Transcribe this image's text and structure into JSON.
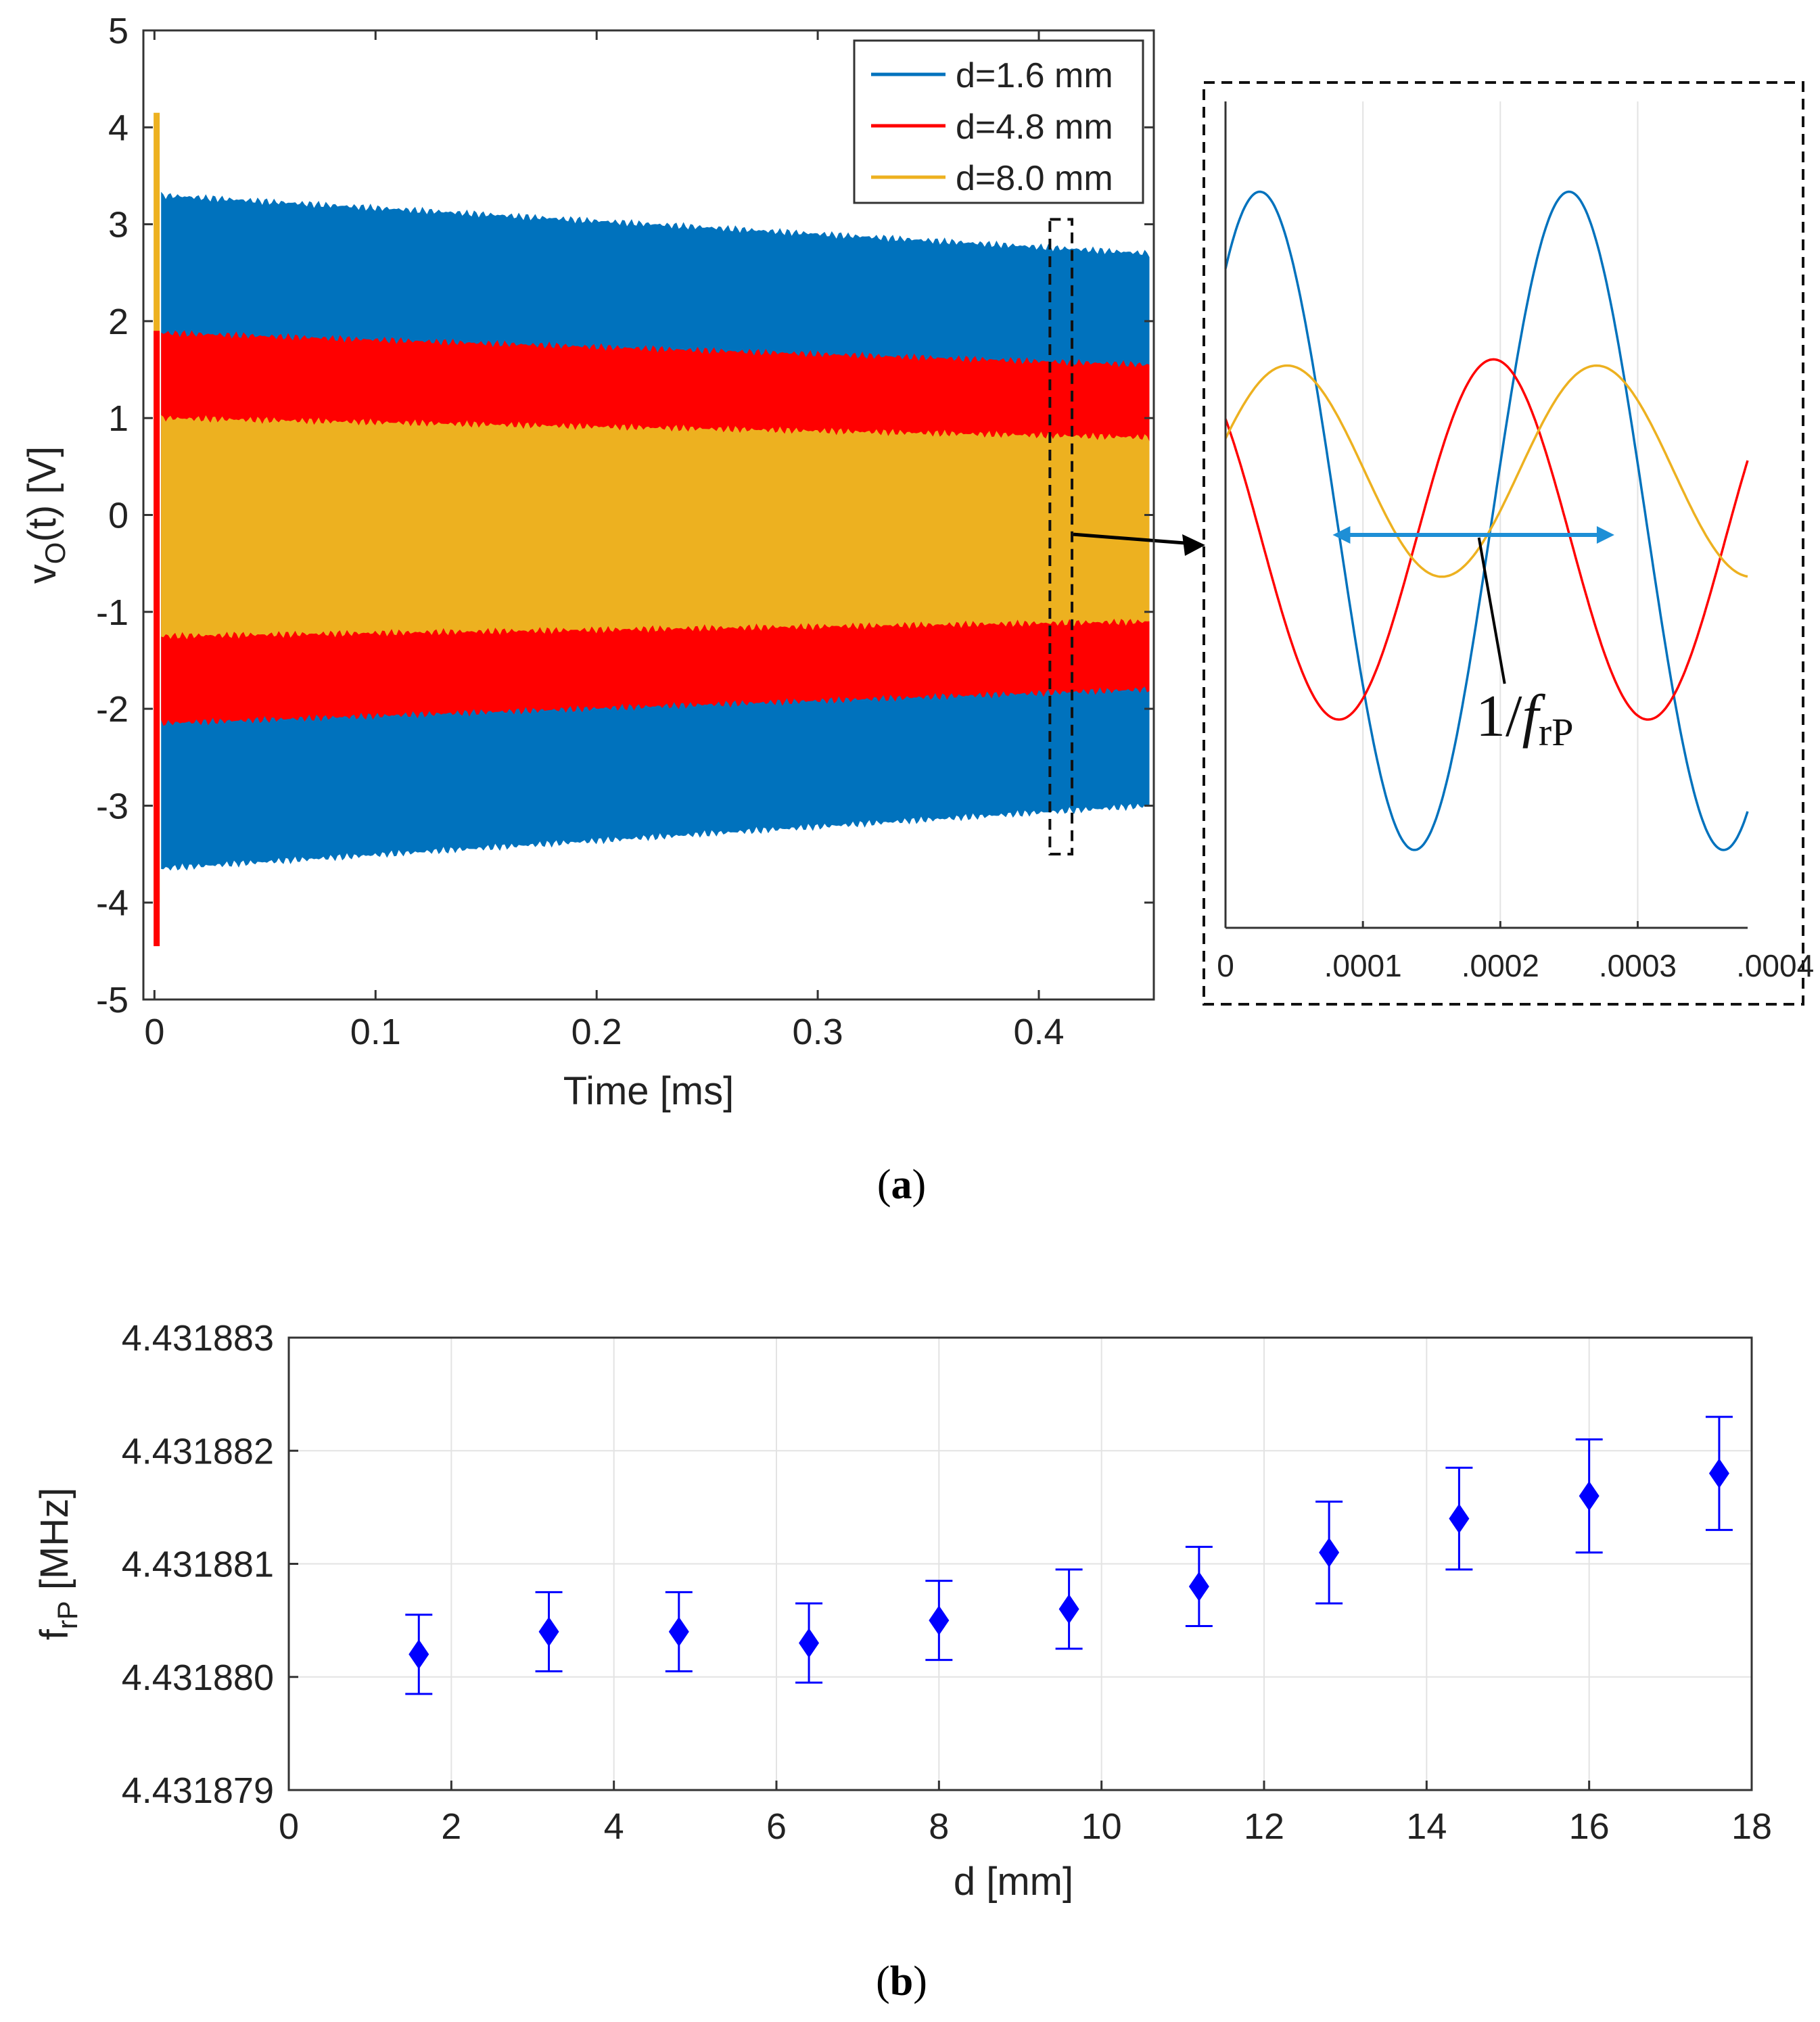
{
  "chart_data": [
    {
      "panel": "a-main",
      "type": "area",
      "panel_label": "a",
      "xlabel": "Time [ms]",
      "ylabel_main": "v",
      "ylabel_sub": "O",
      "ylabel_rest": "(t) [V]",
      "xlim": [
        -0.005,
        0.452
      ],
      "ylim": [
        -5,
        5
      ],
      "xticks": [
        0,
        0.1,
        0.2,
        0.3,
        0.4
      ],
      "xtick_labels": [
        "0",
        "0.1",
        "0.2",
        "0.3",
        "0.4"
      ],
      "yticks": [
        5,
        4,
        3,
        2,
        1,
        0,
        -1,
        -2,
        -3,
        -4,
        -5
      ],
      "ytick_labels": [
        "5",
        "4",
        "3",
        "2",
        "1",
        "0",
        "-1",
        "-2",
        "-3",
        "-4",
        "-5"
      ],
      "grid": false,
      "legend_position": "top-right",
      "series": [
        {
          "name": "d=1.6 mm",
          "color": "#0072BD",
          "x": [
            0.003,
            0.45
          ],
          "upper": [
            3.3,
            2.7
          ],
          "lower": [
            -3.65,
            -3.0
          ]
        },
        {
          "name": "d=4.8 mm",
          "color": "#FF0000",
          "x": [
            0.003,
            0.45
          ],
          "upper": [
            1.88,
            1.55
          ],
          "lower": [
            -2.15,
            -1.8
          ]
        },
        {
          "name": "d=8.0 mm",
          "color": "#EDB120",
          "x": [
            0.003,
            0.45
          ],
          "upper": [
            1.0,
            0.8
          ],
          "lower": [
            -1.25,
            -1.1
          ]
        }
      ],
      "transients": [
        {
          "series": "d=8.0 mm",
          "x": 0.001,
          "top": 4.15,
          "bottom": -4.0
        },
        {
          "series": "d=4.8 mm",
          "x": 0.001,
          "top": 1.9,
          "bottom": -4.45
        }
      ],
      "zoom_window": {
        "x": [
          0.405,
          0.415
        ],
        "y": [
          -3.5,
          3.05
        ]
      }
    },
    {
      "panel": "a-inset",
      "type": "line",
      "xlim": [
        0,
        0.00038
      ],
      "xticks": [
        0,
        0.0001,
        0.0002,
        0.0003,
        0.0004
      ],
      "xtick_labels": [
        "0",
        ".0001",
        ".0002",
        ".0003",
        ".0004"
      ],
      "grid": true,
      "period": 0.000225,
      "annotation_main": "1/",
      "annotation_italic": "f",
      "annotation_sub": "rP",
      "series": [
        {
          "name": "d=1.6 mm",
          "color": "#0072BD",
          "amplitude": 2.65,
          "offset": -0.05,
          "peak_at": 2.5e-05
        },
        {
          "name": "d=4.8 mm",
          "color": "#FF0000",
          "amplitude": 1.45,
          "offset": -0.2,
          "peak_at": 0.000195
        },
        {
          "name": "d=8.0 mm",
          "color": "#EDB120",
          "amplitude": 0.85,
          "offset": 0.35,
          "peak_at": 4.5e-05
        }
      ],
      "arrow": {
        "x": [
          7.8e-05,
          0.000283
        ],
        "y": 0
      }
    },
    {
      "panel": "b",
      "type": "scatter",
      "panel_label": "b",
      "xlabel": "d [mm]",
      "ylabel_main": "f",
      "ylabel_sub": "rP",
      "ylabel_rest": " [MHz]",
      "xlim": [
        0,
        18
      ],
      "ylim": [
        4.431879,
        4.431883
      ],
      "xticks": [
        0,
        2,
        4,
        6,
        8,
        10,
        12,
        14,
        16,
        18
      ],
      "xtick_labels": [
        "0",
        "2",
        "4",
        "6",
        "8",
        "10",
        "12",
        "14",
        "16",
        "18"
      ],
      "yticks": [
        4.431883,
        4.431882,
        4.431881,
        4.43188,
        4.431879
      ],
      "ytick_labels": [
        "4.431883",
        "4.431882",
        "4.431881",
        "4.431880",
        "4.431879"
      ],
      "grid": true,
      "marker_color": "#0000FF",
      "x": [
        1.6,
        3.2,
        4.8,
        6.4,
        8.0,
        9.6,
        11.2,
        12.8,
        14.4,
        16.0,
        17.6
      ],
      "y": [
        4.4318802,
        4.4318804,
        4.4318804,
        4.4318803,
        4.4318805,
        4.4318806,
        4.4318808,
        4.4318811,
        4.4318814,
        4.4318816,
        4.4318818
      ],
      "yerr": [
        3.5e-07,
        3.5e-07,
        3.5e-07,
        3.5e-07,
        3.5e-07,
        3.5e-07,
        3.5e-07,
        4.5e-07,
        4.5e-07,
        5e-07,
        5e-07
      ]
    }
  ]
}
